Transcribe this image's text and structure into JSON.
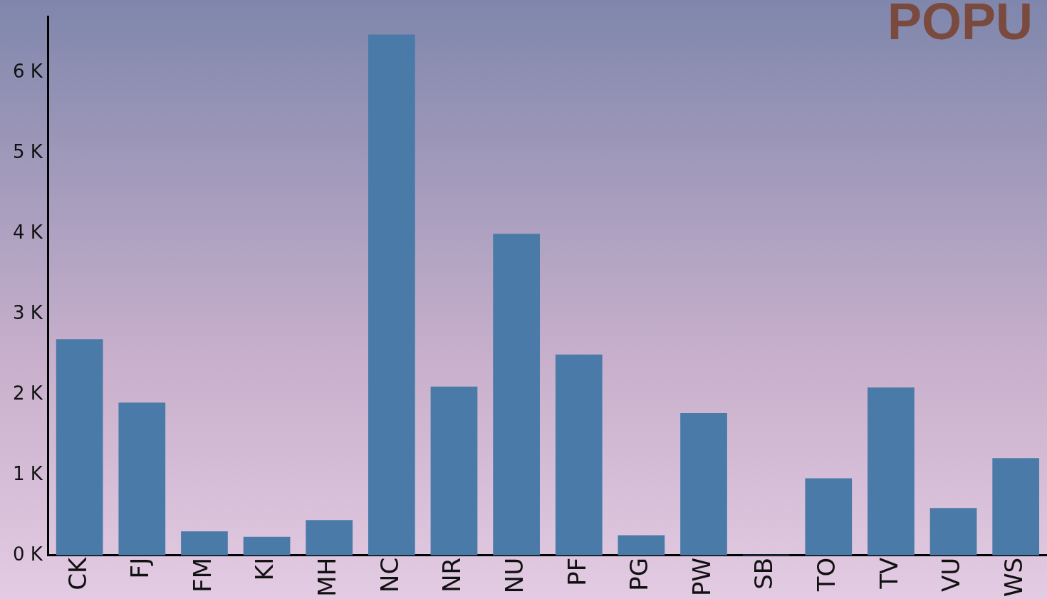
{
  "chart_data": {
    "type": "bar",
    "title": "POPU",
    "categories": [
      "CK",
      "FJ",
      "FM",
      "KI",
      "MH",
      "NC",
      "NR",
      "NU",
      "PF",
      "PG",
      "PW",
      "SB",
      "TO",
      "TV",
      "VU",
      "WS"
    ],
    "values": [
      2690,
      1900,
      300,
      230,
      440,
      6480,
      2100,
      4000,
      2500,
      250,
      1770,
      10,
      960,
      2090,
      590,
      1210
    ],
    "color": "#4a7aa8",
    "ylim": [
      0,
      6700
    ],
    "yticks": [
      {
        "value": 0,
        "label": "0 K"
      },
      {
        "value": 1000,
        "label": "1 K"
      },
      {
        "value": 2000,
        "label": "2 K"
      },
      {
        "value": 3000,
        "label": "3 K"
      },
      {
        "value": 4000,
        "label": "4 K"
      },
      {
        "value": 5000,
        "label": "5 K"
      },
      {
        "value": 6000,
        "label": "6 K"
      }
    ],
    "grid": false
  }
}
